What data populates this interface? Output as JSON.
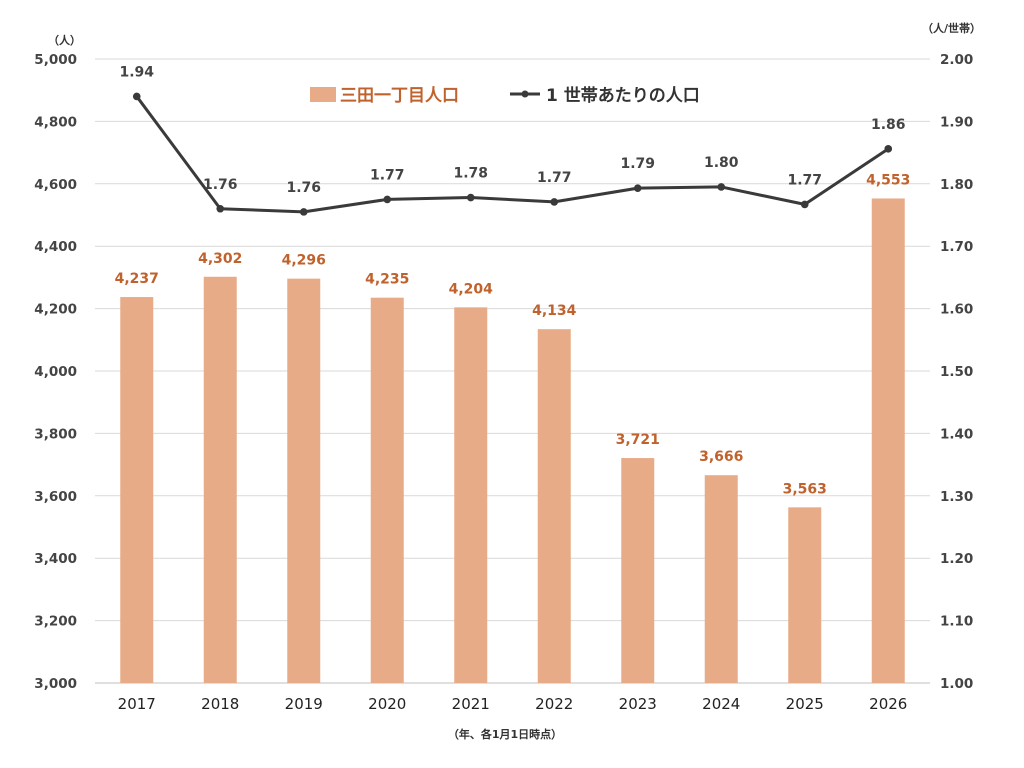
{
  "chart_data": {
    "type": "bar+line",
    "categories": [
      "2017",
      "2018",
      "2019",
      "2020",
      "2021",
      "2022",
      "2023",
      "2024",
      "2025",
      "2026"
    ],
    "series": [
      {
        "name": "三田一丁目人口",
        "type": "bar",
        "axis": "left",
        "color": "#e8ab88",
        "label_color": "#c0622d",
        "values": [
          4237,
          4302,
          4296,
          4235,
          4204,
          4134,
          3721,
          3666,
          3563,
          4553
        ],
        "labels": [
          "4,237",
          "4,302",
          "4,296",
          "4,235",
          "4,204",
          "4,134",
          "3,721",
          "3,666",
          "3,563",
          "4,553"
        ]
      },
      {
        "name": "1 世帯あたりの人口",
        "type": "line",
        "axis": "right",
        "color": "#3a3a3a",
        "values": [
          1.94,
          1.76,
          1.755,
          1.775,
          1.778,
          1.771,
          1.793,
          1.795,
          1.767,
          1.856
        ],
        "labels": [
          "1.94",
          "1.76",
          "1.76",
          "1.77",
          "1.78",
          "1.77",
          "1.79",
          "1.80",
          "1.77",
          "1.86"
        ]
      }
    ],
    "left_axis": {
      "unit": "（人）",
      "ylim": [
        3000,
        5000
      ],
      "ticks": [
        "3,000",
        "3,200",
        "3,400",
        "3,600",
        "3,800",
        "4,000",
        "4,200",
        "4,400",
        "4,600",
        "4,800",
        "5,000"
      ]
    },
    "right_axis": {
      "unit": "（人/世帯）",
      "ylim": [
        1.0,
        2.0
      ],
      "ticks": [
        "1.00",
        "1.10",
        "1.20",
        "1.30",
        "1.40",
        "1.50",
        "1.60",
        "1.70",
        "1.80",
        "1.90",
        "2.00"
      ]
    },
    "x_note": "（年、各1月1日時点）",
    "grid": "horizontal",
    "legend_position": "top-center"
  }
}
